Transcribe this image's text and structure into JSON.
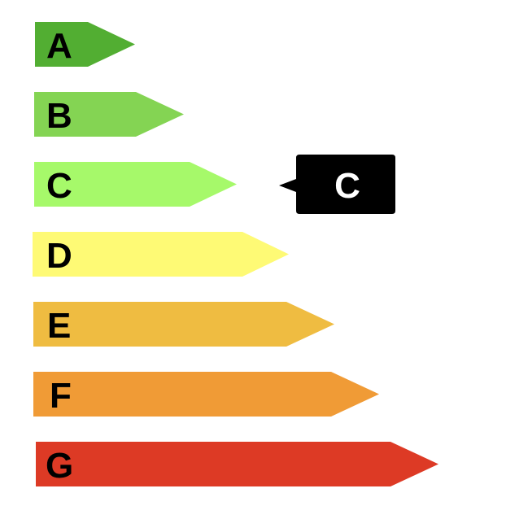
{
  "energy_rating": {
    "bands": [
      {
        "letter": "A",
        "color": "#52ae32"
      },
      {
        "letter": "B",
        "color": "#84d453"
      },
      {
        "letter": "C",
        "color": "#a6f96a"
      },
      {
        "letter": "D",
        "color": "#fefa75"
      },
      {
        "letter": "E",
        "color": "#efbc41"
      },
      {
        "letter": "F",
        "color": "#f09b36"
      },
      {
        "letter": "G",
        "color": "#dd3a25"
      }
    ],
    "current": {
      "letter": "C",
      "band_index": 2,
      "color": "#000000"
    }
  }
}
